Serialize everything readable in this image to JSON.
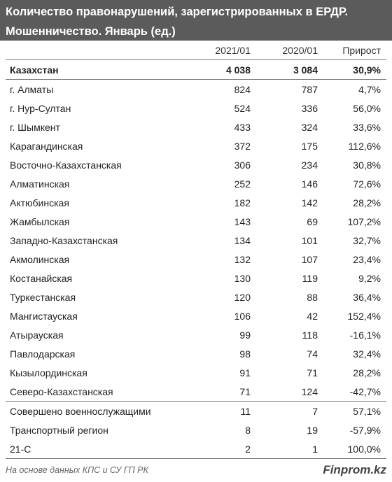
{
  "title_line1": "Количество правонарушений, зарегистрированных в ЕРДР.",
  "title_line2": "Мошенничество. Январь (ед.)",
  "columns": [
    "",
    "2021/01",
    "2020/01",
    "Прирост"
  ],
  "total": {
    "name": "Казахстан",
    "y2021": "4 038",
    "y2020": "3 084",
    "growth": "30,9%"
  },
  "regions": [
    {
      "name": "г. Алматы",
      "y2021": "824",
      "y2020": "787",
      "growth": "4,7%"
    },
    {
      "name": "г. Нур-Султан",
      "y2021": "524",
      "y2020": "336",
      "growth": "56,0%"
    },
    {
      "name": "г. Шымкент",
      "y2021": "433",
      "y2020": "324",
      "growth": "33,6%"
    },
    {
      "name": "Карагандинская",
      "y2021": "372",
      "y2020": "175",
      "growth": "112,6%"
    },
    {
      "name": "Восточно-Казахстанская",
      "y2021": "306",
      "y2020": "234",
      "growth": "30,8%"
    },
    {
      "name": "Алматинская",
      "y2021": "252",
      "y2020": "146",
      "growth": "72,6%"
    },
    {
      "name": "Актюбинская",
      "y2021": "182",
      "y2020": "142",
      "growth": "28,2%"
    },
    {
      "name": "Жамбылская",
      "y2021": "143",
      "y2020": "69",
      "growth": "107,2%"
    },
    {
      "name": "Западно-Казахстанская",
      "y2021": "134",
      "y2020": "101",
      "growth": "32,7%"
    },
    {
      "name": "Акмолинская",
      "y2021": "132",
      "y2020": "107",
      "growth": "23,4%"
    },
    {
      "name": "Костанайская",
      "y2021": "130",
      "y2020": "119",
      "growth": "9,2%"
    },
    {
      "name": "Туркестанская",
      "y2021": "120",
      "y2020": "88",
      "growth": "36,4%"
    },
    {
      "name": "Мангистауская",
      "y2021": "106",
      "y2020": "42",
      "growth": "152,4%"
    },
    {
      "name": "Атырауская",
      "y2021": "99",
      "y2020": "118",
      "growth": "-16,1%"
    },
    {
      "name": "Павлодарская",
      "y2021": "98",
      "y2020": "74",
      "growth": "32,4%"
    },
    {
      "name": "Кызылординская",
      "y2021": "91",
      "y2020": "71",
      "growth": "28,2%"
    },
    {
      "name": "Северо-Казахстанская",
      "y2021": "71",
      "y2020": "124",
      "growth": "-42,7%"
    }
  ],
  "other": [
    {
      "name": "Совершено военнослужащими",
      "y2021": "11",
      "y2020": "7",
      "growth": "57,1%"
    },
    {
      "name": "Транспортный регион",
      "y2021": "8",
      "y2020": "19",
      "growth": "-57,9%"
    },
    {
      "name": "21-С",
      "y2021": "2",
      "y2020": "1",
      "growth": "100,0%"
    }
  ],
  "source": "На основе данных КПС и СУ ГП РК",
  "brand": "Finprom.kz",
  "colors": {
    "header_bg": "#5b5b5b",
    "header_text": "#ffffff"
  },
  "chart_data": {
    "type": "table",
    "title": "Количество правонарушений, зарегистрированных в ЕРДР. Мошенничество. Январь (ед.)",
    "columns": [
      "",
      "2021/01",
      "2020/01",
      "Прирост"
    ],
    "rows": [
      [
        "Казахстан",
        4038,
        3084,
        "30,9%"
      ],
      [
        "г. Алматы",
        824,
        787,
        "4,7%"
      ],
      [
        "г. Нур-Султан",
        524,
        336,
        "56,0%"
      ],
      [
        "г. Шымкент",
        433,
        324,
        "33,6%"
      ],
      [
        "Карагандинская",
        372,
        175,
        "112,6%"
      ],
      [
        "Восточно-Казахстанская",
        306,
        234,
        "30,8%"
      ],
      [
        "Алматинская",
        252,
        146,
        "72,6%"
      ],
      [
        "Актюбинская",
        182,
        142,
        "28,2%"
      ],
      [
        "Жамбылская",
        143,
        69,
        "107,2%"
      ],
      [
        "Западно-Казахстанская",
        134,
        101,
        "32,7%"
      ],
      [
        "Акмолинская",
        132,
        107,
        "23,4%"
      ],
      [
        "Костанайская",
        130,
        119,
        "9,2%"
      ],
      [
        "Туркестанская",
        120,
        88,
        "36,4%"
      ],
      [
        "Мангистауская",
        106,
        42,
        "152,4%"
      ],
      [
        "Атырауская",
        99,
        118,
        "-16,1%"
      ],
      [
        "Павлодарская",
        98,
        74,
        "32,4%"
      ],
      [
        "Кызылординская",
        91,
        71,
        "28,2%"
      ],
      [
        "Северо-Казахстанская",
        71,
        124,
        "-42,7%"
      ],
      [
        "Совершено военнослужащими",
        11,
        7,
        "57,1%"
      ],
      [
        "Транспортный регион",
        8,
        19,
        "-57,9%"
      ],
      [
        "21-С",
        2,
        1,
        "100,0%"
      ]
    ]
  }
}
